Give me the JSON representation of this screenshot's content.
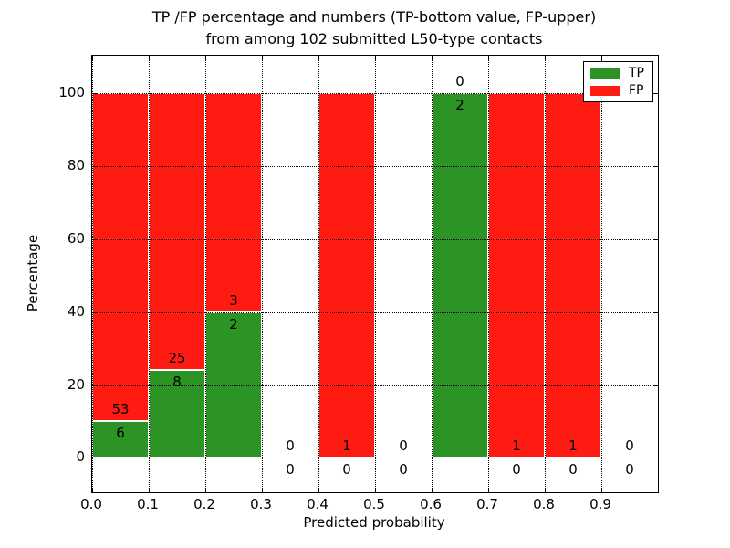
{
  "chart_data": {
    "type": "bar",
    "stacked": true,
    "title": "TP /FP percentage and numbers (TP-bottom value, FP-upper) from among 102 submitted L50-type contacts",
    "title_line1": "TP /FP percentage and numbers (TP-bottom value, FP-upper)",
    "title_line2": "from among 102 submitted L50-type contacts",
    "xlabel": "Predicted probability",
    "ylabel": "Percentage",
    "x_ticks": [
      "0.0",
      "0.1",
      "0.2",
      "0.3",
      "0.4",
      "0.5",
      "0.6",
      "0.7",
      "0.8",
      "0.9"
    ],
    "y_ticks": [
      "0",
      "20",
      "40",
      "60",
      "80",
      "100"
    ],
    "xlim": [
      0.0,
      1.0
    ],
    "ylim": [
      -9.4,
      110.2
    ],
    "grid": "dotted-black-on-top-of-bars",
    "bar_edge_color": "#ffffff",
    "colors": {
      "tp": "#2b9425",
      "fp": "#ff1b12"
    },
    "legend": {
      "position": "upper right",
      "entries": [
        {
          "label": "TP",
          "color": "#2b9425"
        },
        {
          "label": "FP",
          "color": "#ff1b12"
        }
      ]
    },
    "bins": [
      {
        "range": [
          0.0,
          0.1
        ],
        "tp": 6,
        "fp": 53,
        "tp_pct": 10.2
      },
      {
        "range": [
          0.1,
          0.2
        ],
        "tp": 8,
        "fp": 25,
        "tp_pct": 24.2
      },
      {
        "range": [
          0.2,
          0.3
        ],
        "tp": 2,
        "fp": 3,
        "tp_pct": 40.0
      },
      {
        "range": [
          0.3,
          0.4
        ],
        "tp": 0,
        "fp": 0,
        "tp_pct": null
      },
      {
        "range": [
          0.4,
          0.5
        ],
        "tp": 0,
        "fp": 1,
        "tp_pct": 0.0
      },
      {
        "range": [
          0.5,
          0.6
        ],
        "tp": 0,
        "fp": 0,
        "tp_pct": null
      },
      {
        "range": [
          0.6,
          0.7
        ],
        "tp": 2,
        "fp": 0,
        "tp_pct": 100.0
      },
      {
        "range": [
          0.7,
          0.8
        ],
        "tp": 0,
        "fp": 1,
        "tp_pct": 0.0
      },
      {
        "range": [
          0.8,
          0.9
        ],
        "tp": 0,
        "fp": 1,
        "tp_pct": 0.0
      },
      {
        "range": [
          0.9,
          1.0
        ],
        "tp": 0,
        "fp": 0,
        "tp_pct": null
      }
    ]
  }
}
